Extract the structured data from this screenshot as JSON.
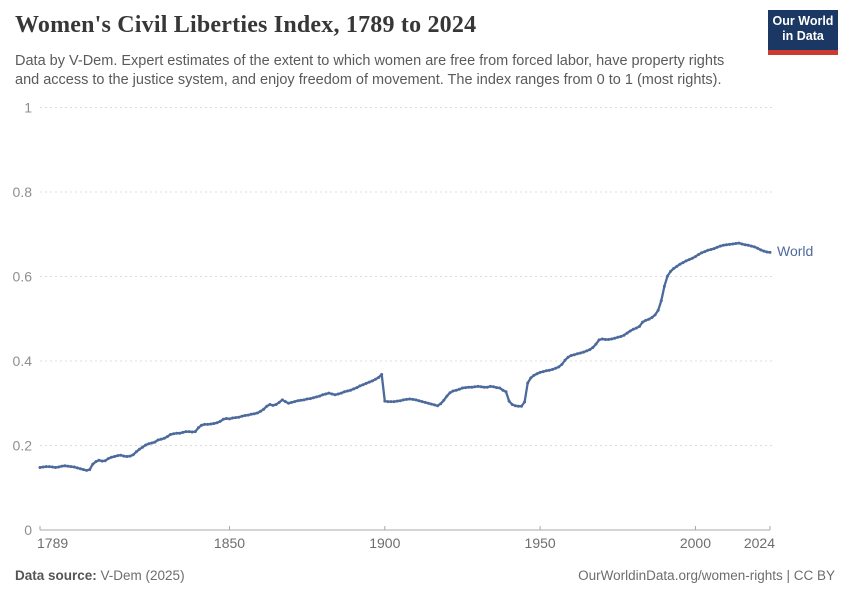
{
  "header": {
    "logo": {
      "line1": "Our World",
      "line2": "in Data",
      "bg_color": "#1b3763",
      "stripe_color": "#cb3b31"
    }
  },
  "footer": {
    "source_label": "Data source:",
    "source_value": " V-Dem (2025)",
    "credit": "OurWorldinData.org/women-rights | CC BY"
  },
  "chart_data": {
    "type": "line",
    "title": "Women's Civil Liberties Index, 1789 to 2024",
    "subtitle_lines": [
      "Data by V-Dem. Expert estimates of the extent to which women are free from forced labor, have property rights",
      "and access to the justice system, and enjoy freedom of movement. The index ranges from 0 to 1 (most rights)."
    ],
    "xlabel": "",
    "ylabel": "",
    "xlim": [
      1789,
      2024
    ],
    "ylim": [
      0,
      1
    ],
    "grid": "horizontal-dashed",
    "legend_position": "end-of-line",
    "x_ticks": [
      {
        "value": 1789,
        "label": "1789"
      },
      {
        "value": 1850,
        "label": "1850"
      },
      {
        "value": 1900,
        "label": "1900"
      },
      {
        "value": 1950,
        "label": "1950"
      },
      {
        "value": 2000,
        "label": "2000"
      },
      {
        "value": 2024,
        "label": "2024"
      }
    ],
    "y_ticks": [
      {
        "value": 0,
        "label": "0"
      },
      {
        "value": 0.2,
        "label": "0.2"
      },
      {
        "value": 0.4,
        "label": "0.4"
      },
      {
        "value": 0.6,
        "label": "0.6"
      },
      {
        "value": 0.8,
        "label": "0.8"
      },
      {
        "value": 1,
        "label": "1"
      }
    ],
    "series": [
      {
        "name": "World",
        "color": "#4c6a9c",
        "start_year": 1789,
        "end_year": 2024,
        "values": [
          0.148,
          0.149,
          0.15,
          0.15,
          0.149,
          0.148,
          0.149,
          0.151,
          0.152,
          0.151,
          0.15,
          0.149,
          0.147,
          0.145,
          0.143,
          0.141,
          0.143,
          0.156,
          0.162,
          0.165,
          0.163,
          0.164,
          0.169,
          0.172,
          0.174,
          0.176,
          0.177,
          0.175,
          0.174,
          0.175,
          0.178,
          0.185,
          0.191,
          0.196,
          0.201,
          0.204,
          0.206,
          0.208,
          0.213,
          0.215,
          0.217,
          0.221,
          0.226,
          0.228,
          0.229,
          0.229,
          0.231,
          0.233,
          0.233,
          0.232,
          0.233,
          0.242,
          0.248,
          0.25,
          0.25,
          0.251,
          0.252,
          0.254,
          0.257,
          0.262,
          0.264,
          0.263,
          0.265,
          0.266,
          0.267,
          0.269,
          0.271,
          0.272,
          0.274,
          0.275,
          0.277,
          0.281,
          0.286,
          0.293,
          0.297,
          0.295,
          0.297,
          0.302,
          0.308,
          0.304,
          0.3,
          0.302,
          0.304,
          0.306,
          0.307,
          0.308,
          0.31,
          0.311,
          0.313,
          0.315,
          0.317,
          0.32,
          0.322,
          0.324,
          0.322,
          0.32,
          0.322,
          0.324,
          0.327,
          0.329,
          0.331,
          0.334,
          0.337,
          0.341,
          0.344,
          0.347,
          0.35,
          0.353,
          0.357,
          0.361,
          0.368,
          0.305,
          0.304,
          0.304,
          0.304,
          0.305,
          0.306,
          0.308,
          0.309,
          0.31,
          0.309,
          0.308,
          0.306,
          0.304,
          0.302,
          0.3,
          0.298,
          0.296,
          0.294,
          0.299,
          0.307,
          0.317,
          0.325,
          0.329,
          0.331,
          0.333,
          0.336,
          0.337,
          0.338,
          0.338,
          0.339,
          0.34,
          0.339,
          0.338,
          0.338,
          0.34,
          0.339,
          0.337,
          0.336,
          0.331,
          0.327,
          0.305,
          0.297,
          0.294,
          0.293,
          0.293,
          0.303,
          0.348,
          0.36,
          0.366,
          0.37,
          0.373,
          0.375,
          0.377,
          0.378,
          0.38,
          0.383,
          0.386,
          0.392,
          0.402,
          0.409,
          0.413,
          0.415,
          0.417,
          0.419,
          0.421,
          0.424,
          0.427,
          0.432,
          0.44,
          0.45,
          0.452,
          0.451,
          0.451,
          0.452,
          0.454,
          0.456,
          0.458,
          0.461,
          0.466,
          0.471,
          0.475,
          0.478,
          0.482,
          0.492,
          0.496,
          0.499,
          0.503,
          0.509,
          0.52,
          0.543,
          0.577,
          0.601,
          0.612,
          0.619,
          0.624,
          0.629,
          0.633,
          0.637,
          0.64,
          0.643,
          0.647,
          0.652,
          0.656,
          0.659,
          0.662,
          0.664,
          0.666,
          0.669,
          0.672,
          0.674,
          0.675,
          0.676,
          0.677,
          0.678,
          0.679,
          0.677,
          0.675,
          0.674,
          0.672,
          0.67,
          0.667,
          0.663,
          0.66,
          0.658,
          0.657
        ]
      }
    ]
  }
}
